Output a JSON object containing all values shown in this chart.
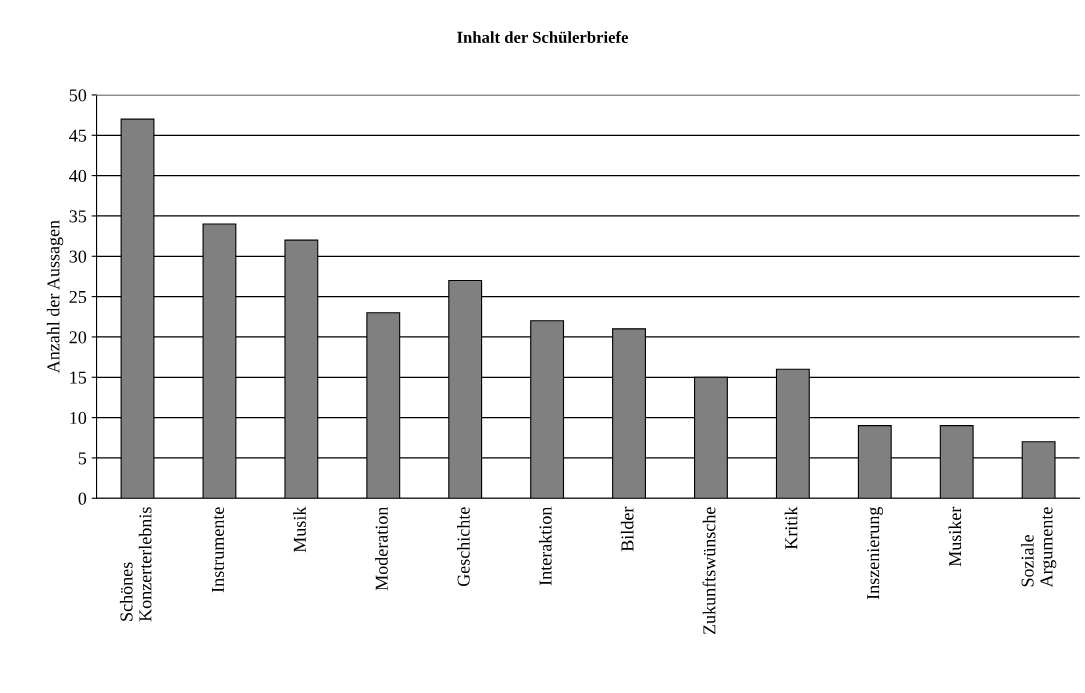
{
  "chart_data": {
    "type": "bar",
    "title": "Inhalt der Schülerbriefe",
    "ylabel": "Anzahl der Aussagen",
    "categories": [
      "Schönes\nKonzerterlebnis",
      "Instrumente",
      "Musik",
      "Moderation",
      "Geschichte",
      "Interaktion",
      "Bilder",
      "Zukunftswünsche",
      "Kritik",
      "Inszenierung",
      "Musiker",
      "Soziale\nArgumente"
    ],
    "values": [
      47,
      34,
      32,
      23,
      27,
      22,
      21,
      15,
      16,
      9,
      9,
      7
    ],
    "color": "#808080",
    "ylim": [
      0,
      50
    ],
    "yticks": [
      0,
      5,
      10,
      15,
      20,
      25,
      30,
      35,
      40,
      45,
      50
    ],
    "grid": "y"
  }
}
